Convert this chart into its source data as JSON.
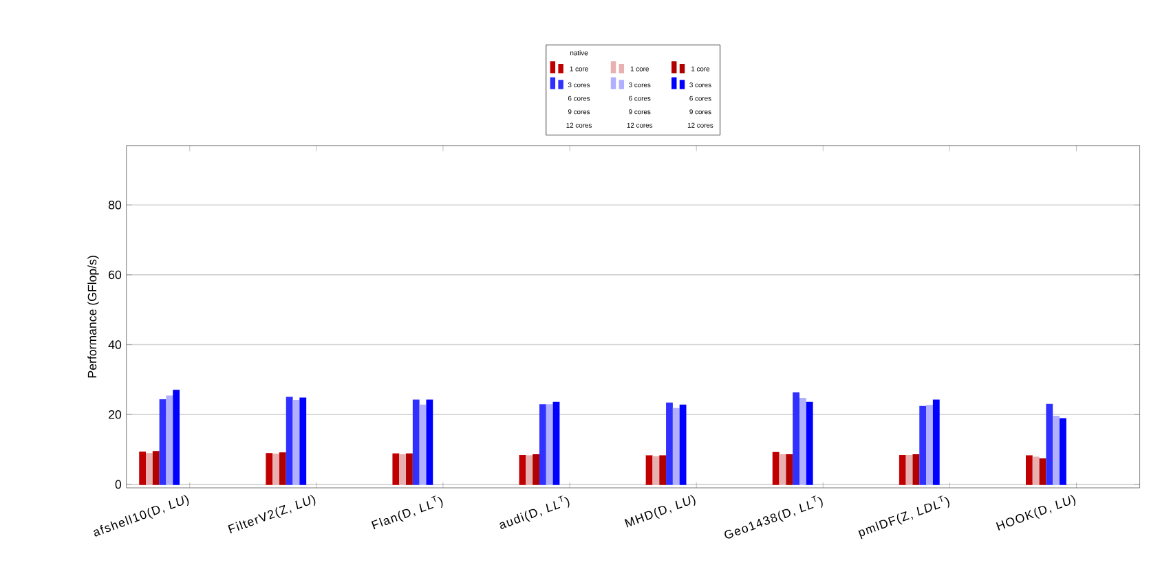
{
  "chart_data": {
    "type": "bar",
    "ylabel": "Performance (GFlop/s)",
    "legend_title": "native",
    "categories": [
      "afshell10(D, *LU*)",
      "FilterV2(Z, *LU*)",
      "Flan(D, *LL*$^{T}$)",
      "audi(D, *LL*$^{T}$)",
      "MHD(D, *LU*)",
      "Geo1438(D, *LL*$^{T}$)",
      "pmlDF(Z, *LDL*$^{T}$)",
      "HOOK(D, *LU*)"
    ],
    "series": [
      {
        "name": "1 core",
        "color": "#c00000",
        "values": [
          9.2,
          8.8,
          8.7,
          8.3,
          8.2,
          9.1,
          8.3,
          8.2
        ]
      },
      {
        "name": "1 core",
        "color": "#e8b0b0",
        "values": [
          8.8,
          8.6,
          8.5,
          8.2,
          7.9,
          8.5,
          8.3,
          7.8
        ]
      },
      {
        "name": "1 core",
        "color": "#b00000",
        "values": [
          9.4,
          9.0,
          8.7,
          8.5,
          8.2,
          8.5,
          8.5,
          7.3
        ]
      },
      {
        "name": "3 cores",
        "color": "#3030ff",
        "values": [
          24.2,
          24.9,
          24.1,
          22.8,
          23.3,
          26.2,
          22.3,
          22.9
        ]
      },
      {
        "name": "3 cores",
        "color": "#b0b0ff",
        "values": [
          25.3,
          24.0,
          22.7,
          22.8,
          21.7,
          24.6,
          22.6,
          19.5
        ]
      },
      {
        "name": "3 cores",
        "color": "#0000ff",
        "values": [
          26.9,
          24.7,
          24.1,
          23.5,
          22.7,
          23.5,
          24.1,
          18.8
        ]
      },
      {
        "name": "6 cores",
        "values": [
          null,
          null,
          null,
          null,
          null,
          null,
          null,
          null
        ]
      },
      {
        "name": "6 cores",
        "values": [
          null,
          null,
          null,
          null,
          null,
          null,
          null,
          null
        ]
      },
      {
        "name": "6 cores",
        "values": [
          null,
          null,
          null,
          null,
          null,
          null,
          null,
          null
        ]
      },
      {
        "name": "9 cores",
        "values": [
          null,
          null,
          null,
          null,
          null,
          null,
          null,
          null
        ]
      },
      {
        "name": "9 cores",
        "values": [
          null,
          null,
          null,
          null,
          null,
          null,
          null,
          null
        ]
      },
      {
        "name": "9 cores",
        "values": [
          null,
          null,
          null,
          null,
          null,
          null,
          null,
          null
        ]
      },
      {
        "name": "12 cores",
        "values": [
          null,
          null,
          null,
          null,
          null,
          null,
          null,
          null
        ]
      },
      {
        "name": "12 cores",
        "values": [
          null,
          null,
          null,
          null,
          null,
          null,
          null,
          null
        ]
      },
      {
        "name": "12 cores",
        "values": [
          null,
          null,
          null,
          null,
          null,
          null,
          null,
          null
        ]
      }
    ],
    "ylim": [
      -1,
      97
    ],
    "yticks": [
      0,
      20,
      40,
      60,
      80
    ],
    "grid": "y",
    "legend": "top"
  }
}
